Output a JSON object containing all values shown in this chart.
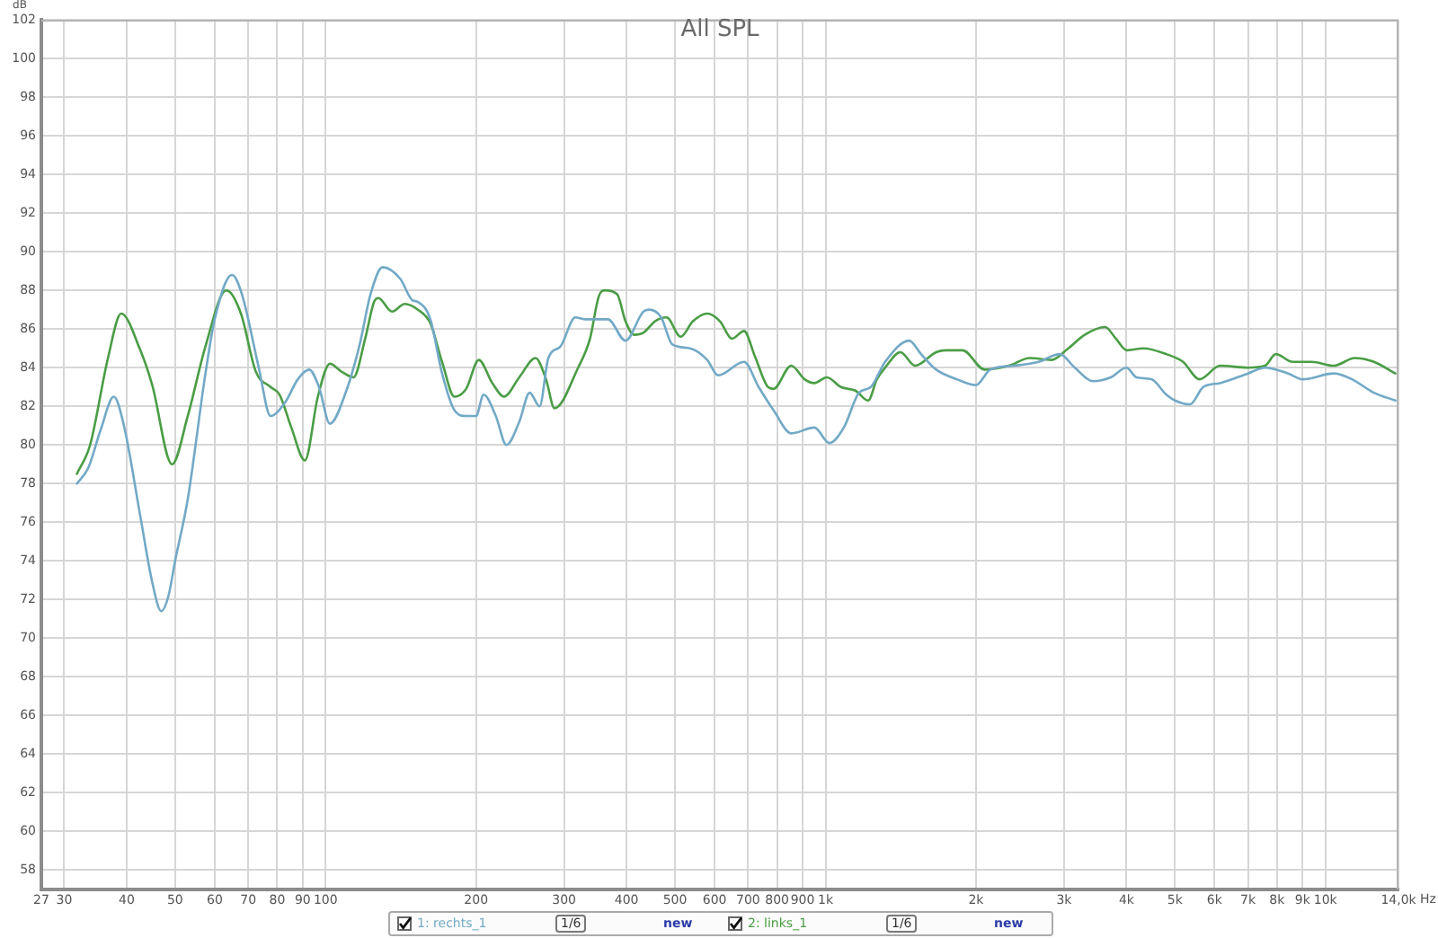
{
  "chart_data": {
    "type": "line",
    "title": "All SPL",
    "xlabel": "Hz",
    "ylabel": "dB",
    "log": "x",
    "grid": true,
    "legend": "bottom",
    "marker": "none",
    "xlim": [
      27,
      14000
    ],
    "ylim": [
      57,
      102
    ],
    "xticks": [
      27,
      30,
      40,
      50,
      60,
      70,
      80,
      90,
      100,
      200,
      300,
      400,
      500,
      600,
      700,
      800,
      900,
      {
        "value": 1000,
        "label": "1k"
      },
      {
        "value": 2000,
        "label": "2k"
      },
      {
        "value": 3000,
        "label": "3k"
      },
      {
        "value": 4000,
        "label": "4k"
      },
      {
        "value": 5000,
        "label": "5k"
      },
      {
        "value": 6000,
        "label": "6k"
      },
      {
        "value": 7000,
        "label": "7k"
      },
      {
        "value": 8000,
        "label": "8k"
      },
      {
        "value": 9000,
        "label": "9k"
      },
      {
        "value": 10000,
        "label": "10k"
      },
      {
        "value": 14000,
        "label": "14,0k"
      }
    ],
    "yticks": [
      58,
      60,
      62,
      64,
      66,
      68,
      70,
      72,
      74,
      76,
      78,
      80,
      82,
      84,
      86,
      88,
      90,
      92,
      94,
      96,
      98,
      100,
      102
    ],
    "annotations": [
      "1/6",
      "new",
      "1/6",
      "new"
    ],
    "series": [
      {
        "name": "1: rechts_1",
        "color": "#72a9c6",
        "x": [
          31.8,
          33.5,
          35.5,
          37.7,
          39.5,
          42.6,
          45,
          46.9,
          48.5,
          50,
          53,
          57.5,
          60,
          65,
          68,
          73.5,
          77.6,
          83,
          88,
          92.7,
          97,
          102,
          110,
          117,
          123,
          130,
          141,
          149,
          153,
          162,
          171,
          181,
          191,
          200,
          207,
          219,
          230,
          244,
          256,
          268,
          279,
          295,
          316,
          330,
          367,
          398,
          432,
          444,
          469,
          494,
          536,
          580,
          610,
          687,
          735,
          787,
          854,
          950,
          1018,
          1088,
          1167,
          1232,
          1316,
          1470,
          1553,
          1665,
          1832,
          2000,
          2136,
          2387,
          2668,
          2940,
          3153,
          3428,
          3719,
          4000,
          4188,
          4486,
          4807,
          5000,
          5360,
          5700,
          6157,
          7000,
          7570,
          8425,
          9000,
          10400,
          11300,
          12500,
          13800
        ],
        "values": [
          78.0,
          78.8,
          80.8,
          82.5,
          81.0,
          76.3,
          72.9,
          71.4,
          72.2,
          74.0,
          77.2,
          83.7,
          86.5,
          88.8,
          87.8,
          84.0,
          81.5,
          82.2,
          83.4,
          83.9,
          83.0,
          81.1,
          82.8,
          85.2,
          87.8,
          89.2,
          88.6,
          87.5,
          87.4,
          86.5,
          83.7,
          81.8,
          81.5,
          81.5,
          82.6,
          81.5,
          80.0,
          81.2,
          82.7,
          82.0,
          84.5,
          85.1,
          86.6,
          86.5,
          86.5,
          85.4,
          86.9,
          87.0,
          86.6,
          85.2,
          85.0,
          84.4,
          83.6,
          84.3,
          83.0,
          81.8,
          80.6,
          80.9,
          80.1,
          80.9,
          82.7,
          83.0,
          84.3,
          85.4,
          84.7,
          83.9,
          83.4,
          83.1,
          83.9,
          84.1,
          84.3,
          84.7,
          84.0,
          83.3,
          83.5,
          84.0,
          83.5,
          83.4,
          82.6,
          82.3,
          82.1,
          83.0,
          83.2,
          83.7,
          84.0,
          83.7,
          83.4,
          83.7,
          83.4,
          82.7,
          82.3
        ]
      },
      {
        "name": "2: links_1",
        "color": "#4a9d45",
        "x": [
          31.8,
          33.8,
          36.7,
          39,
          42.6,
          45,
          49.3,
          53,
          57.5,
          63.3,
          67.7,
          72.5,
          77.6,
          80.9,
          85.4,
          90.9,
          96.5,
          102,
          107.6,
          113.7,
          120,
          125,
          127.5,
          135.8,
          144,
          153,
          162,
          171,
          181,
          191,
          202.5,
          215.6,
          227.5,
          244,
          263,
          276,
          287,
          320,
          338,
          352,
          362,
          383,
          398,
          414,
          432,
          456,
          481,
          513,
          543,
          580,
          615,
          650,
          687,
          722,
          767,
          787,
          854,
          908,
          950,
          1006,
          1074,
          1150,
          1217,
          1267,
          1316,
          1412,
          1511,
          1665,
          1740,
          1880,
          2082,
          2327,
          2560,
          2830,
          3060,
          3300,
          3625,
          3810,
          4010,
          4330,
          4807,
          5190,
          5600,
          6157,
          7000,
          7570,
          7960,
          8600,
          9400,
          10400,
          11450,
          12500,
          13800
        ],
        "values": [
          78.5,
          80.0,
          84.5,
          86.8,
          84.9,
          83.1,
          79.0,
          81.5,
          85.1,
          88.0,
          86.8,
          83.8,
          83.0,
          82.6,
          80.9,
          79.2,
          82.5,
          84.2,
          83.8,
          83.5,
          85.5,
          87.4,
          87.6,
          86.9,
          87.3,
          87.0,
          86.3,
          84.3,
          82.5,
          82.9,
          84.4,
          83.2,
          82.5,
          83.5,
          84.5,
          83.4,
          81.9,
          84.0,
          85.5,
          87.7,
          88.0,
          87.8,
          86.4,
          85.7,
          85.8,
          86.4,
          86.6,
          85.6,
          86.4,
          86.8,
          86.4,
          85.5,
          85.9,
          84.6,
          83.0,
          82.9,
          84.1,
          83.4,
          83.2,
          83.5,
          83.0,
          82.8,
          82.3,
          83.4,
          84.0,
          84.8,
          84.1,
          84.8,
          84.9,
          84.9,
          83.9,
          84.1,
          84.5,
          84.4,
          85.0,
          85.7,
          86.1,
          85.5,
          84.9,
          85.0,
          84.7,
          84.3,
          83.4,
          84.1,
          84.0,
          84.1,
          84.7,
          84.3,
          84.3,
          84.1,
          84.5,
          84.3,
          83.7
        ]
      }
    ]
  }
}
